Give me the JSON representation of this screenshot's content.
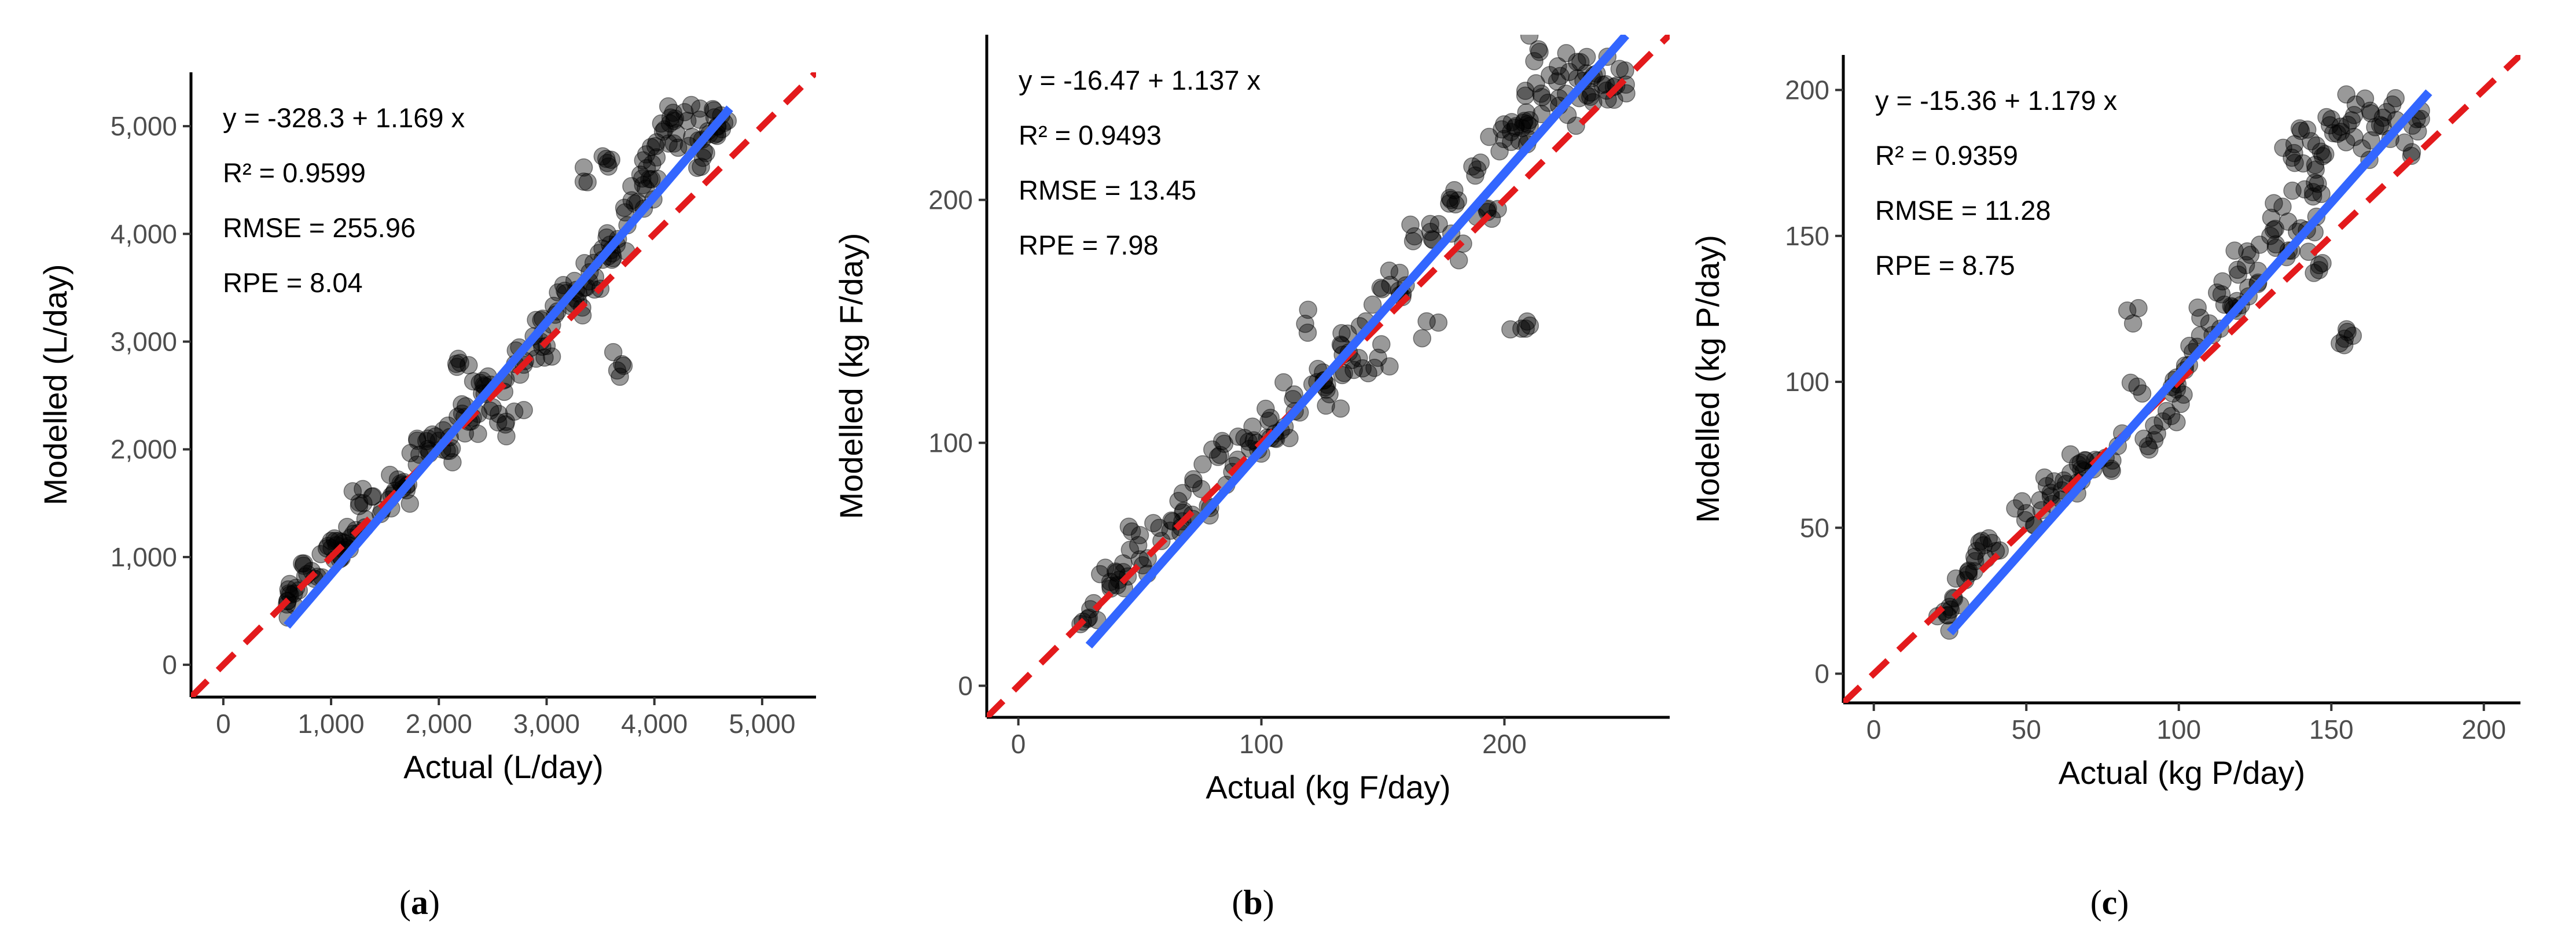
{
  "figure": {
    "panels": [
      "a",
      "b",
      "c"
    ]
  },
  "chart_data": [
    {
      "type": "scatter",
      "panel": "a",
      "caption_open": "(",
      "caption_letter": "a",
      "caption_close": ")",
      "xlabel": "Actual (L/day)",
      "ylabel": "Modelled (L/day)",
      "xlim": [
        -300,
        5500
      ],
      "ylim": [
        -300,
        5500
      ],
      "xticks": [
        0,
        1000,
        2000,
        3000,
        4000,
        5000
      ],
      "yticks": [
        0,
        1000,
        2000,
        3000,
        4000,
        5000
      ],
      "xtick_labels": [
        "0",
        "1,000",
        "2,000",
        "3,000",
        "4,000",
        "5,000"
      ],
      "ytick_labels": [
        "0",
        "1,000",
        "2,000",
        "3,000",
        "4,000",
        "5,000"
      ],
      "annotations": [
        "y = -328.3 + 1.169 x",
        "R² = 0.9599",
        "RMSE = 255.96",
        "RPE = 8.04"
      ],
      "identity_line": {
        "color": "#e31a1c",
        "style": "dashed",
        "from": [
          -300,
          -300
        ],
        "to": [
          5500,
          5500
        ]
      },
      "fit_line": {
        "color": "#3366ff",
        "intercept": -328.3,
        "slope": 1.169,
        "x_range": [
          590,
          4700
        ]
      },
      "point_color": "#000000",
      "points_seed": 11,
      "points": [
        [
          590,
          560
        ],
        [
          620,
          650
        ],
        [
          700,
          690
        ],
        [
          760,
          820
        ],
        [
          820,
          870
        ],
        [
          960,
          1080
        ],
        [
          1000,
          1150
        ],
        [
          1050,
          1110
        ],
        [
          1120,
          1130
        ],
        [
          1180,
          1180
        ],
        [
          1230,
          1250
        ],
        [
          1300,
          1500
        ],
        [
          1380,
          1560
        ],
        [
          1460,
          1400
        ],
        [
          1560,
          1570
        ],
        [
          1620,
          1720
        ],
        [
          1700,
          1620
        ],
        [
          1820,
          1950
        ],
        [
          1900,
          2100
        ],
        [
          2000,
          2080
        ],
        [
          2120,
          2010
        ],
        [
          2180,
          2840
        ],
        [
          2250,
          2400
        ],
        [
          2300,
          2260
        ],
        [
          2400,
          2520
        ],
        [
          2480,
          2600
        ],
        [
          2550,
          2250
        ],
        [
          2620,
          2650
        ],
        [
          2700,
          2350
        ],
        [
          2800,
          2820
        ],
        [
          2880,
          3050
        ],
        [
          2950,
          3200
        ],
        [
          3000,
          2960
        ],
        [
          3080,
          3250
        ],
        [
          3180,
          3450
        ],
        [
          3250,
          3350
        ],
        [
          3350,
          3500
        ],
        [
          3450,
          3600
        ],
        [
          3520,
          3760
        ],
        [
          3600,
          3850
        ],
        [
          3700,
          2790
        ],
        [
          3750,
          4080
        ],
        [
          3820,
          4280
        ],
        [
          3870,
          4550
        ],
        [
          3920,
          4420
        ],
        [
          3980,
          4650
        ],
        [
          4020,
          4850
        ],
        [
          4080,
          4950
        ],
        [
          4150,
          5080
        ],
        [
          4220,
          4800
        ],
        [
          4280,
          5130
        ],
        [
          4350,
          4900
        ],
        [
          4420,
          5060
        ],
        [
          4480,
          4750
        ],
        [
          4560,
          4920
        ],
        [
          4620,
          5100
        ],
        [
          4680,
          5050
        ],
        [
          3380,
          4480
        ],
        [
          3520,
          4720
        ],
        [
          3650,
          3900
        ]
      ]
    },
    {
      "type": "scatter",
      "panel": "b",
      "caption_open": "(",
      "caption_letter": "b",
      "caption_close": ")",
      "xlabel": "Actual (kg F/day)",
      "ylabel": "Modelled (kg F/day)",
      "xlim": [
        -13,
        268
      ],
      "ylim": [
        -13,
        268
      ],
      "xticks": [
        0,
        100,
        200
      ],
      "yticks": [
        0,
        100,
        200
      ],
      "xtick_labels": [
        "0",
        "100",
        "200"
      ],
      "ytick_labels": [
        "0",
        "100",
        "200"
      ],
      "annotations": [
        "y = -16.47 + 1.137 x",
        "R² = 0.9493",
        "RMSE = 13.45",
        "RPE = 7.98"
      ],
      "identity_line": {
        "color": "#e31a1c",
        "style": "dashed",
        "from": [
          -13,
          -13
        ],
        "to": [
          268,
          268
        ]
      },
      "fit_line": {
        "color": "#3366ff",
        "intercept": -16.47,
        "slope": 1.137,
        "x_range": [
          29,
          250
        ]
      },
      "point_color": "#000000",
      "points_seed": 29,
      "points": [
        [
          29,
          28
        ],
        [
          31,
          34
        ],
        [
          38,
          40
        ],
        [
          40,
          47
        ],
        [
          45,
          45
        ],
        [
          50,
          52
        ],
        [
          50,
          62
        ],
        [
          58,
          65
        ],
        [
          63,
          68
        ],
        [
          68,
          72
        ],
        [
          72,
          85
        ],
        [
          78,
          74
        ],
        [
          83,
          95
        ],
        [
          88,
          88
        ],
        [
          93,
          102
        ],
        [
          98,
          100
        ],
        [
          103,
          109
        ],
        [
          108,
          105
        ],
        [
          113,
          118
        ],
        [
          118,
          149
        ],
        [
          123,
          125
        ],
        [
          128,
          120
        ],
        [
          133,
          140
        ],
        [
          138,
          130
        ],
        [
          143,
          150
        ],
        [
          148,
          135
        ],
        [
          153,
          165
        ],
        [
          158,
          160
        ],
        [
          163,
          185
        ],
        [
          168,
          150
        ],
        [
          173,
          190
        ],
        [
          178,
          200
        ],
        [
          183,
          182
        ],
        [
          188,
          210
        ],
        [
          193,
          195
        ],
        [
          198,
          220
        ],
        [
          203,
          232
        ],
        [
          207,
          147
        ],
        [
          210,
          225
        ],
        [
          213,
          248
        ],
        [
          218,
          240
        ],
        [
          222,
          255
        ],
        [
          226,
          235
        ],
        [
          230,
          250
        ],
        [
          234,
          243
        ],
        [
          238,
          252
        ],
        [
          242,
          245
        ],
        [
          246,
          247
        ],
        [
          214,
          262
        ],
        [
          209,
          236
        ]
      ]
    },
    {
      "type": "scatter",
      "panel": "c",
      "caption_open": "(",
      "caption_letter": "c",
      "caption_close": ")",
      "xlabel": "Actual (kg P/day)",
      "ylabel": "Modelled (kg P/day)",
      "xlim": [
        -10,
        212
      ],
      "ylim": [
        -10,
        212
      ],
      "xticks": [
        0,
        50,
        100,
        150,
        200
      ],
      "yticks": [
        0,
        50,
        100,
        150,
        200
      ],
      "xtick_labels": [
        "0",
        "50",
        "100",
        "150",
        "200"
      ],
      "ytick_labels": [
        "0",
        "50",
        "100",
        "150",
        "200"
      ],
      "annotations": [
        "y = -15.36 + 1.179 x",
        "R² = 0.9359",
        "RMSE = 11.28",
        "RPE = 8.75"
      ],
      "identity_line": {
        "color": "#e31a1c",
        "style": "dashed",
        "from": [
          -10,
          -10
        ],
        "to": [
          212,
          212
        ]
      },
      "fit_line": {
        "color": "#3366ff",
        "intercept": -15.36,
        "slope": 1.179,
        "x_range": [
          25,
          182
        ]
      },
      "point_color": "#000000",
      "points_seed": 47,
      "points": [
        [
          24,
          20
        ],
        [
          26,
          26
        ],
        [
          30,
          32
        ],
        [
          33,
          40
        ],
        [
          36,
          44
        ],
        [
          40,
          42
        ],
        [
          50,
          55
        ],
        [
          55,
          56
        ],
        [
          58,
          62
        ],
        [
          63,
          65
        ],
        [
          68,
          70
        ],
        [
          72,
          70
        ],
        [
          76,
          74
        ],
        [
          80,
          78
        ],
        [
          85,
          120
        ],
        [
          88,
          96
        ],
        [
          92,
          80
        ],
        [
          96,
          90
        ],
        [
          98,
          96
        ],
        [
          102,
          104
        ],
        [
          106,
          112
        ],
        [
          110,
          120
        ],
        [
          114,
          130
        ],
        [
          118,
          125
        ],
        [
          122,
          140
        ],
        [
          126,
          134
        ],
        [
          130,
          150
        ],
        [
          134,
          160
        ],
        [
          138,
          175
        ],
        [
          140,
          186
        ],
        [
          144,
          165
        ],
        [
          148,
          178
        ],
        [
          150,
          190
        ],
        [
          152,
          185
        ],
        [
          155,
          118
        ],
        [
          158,
          195
        ],
        [
          160,
          180
        ],
        [
          163,
          192
        ],
        [
          166,
          188
        ],
        [
          170,
          195
        ],
        [
          174,
          182
        ],
        [
          178,
          190
        ],
        [
          146,
          140
        ],
        [
          142,
          152
        ],
        [
          136,
          145
        ]
      ]
    }
  ]
}
